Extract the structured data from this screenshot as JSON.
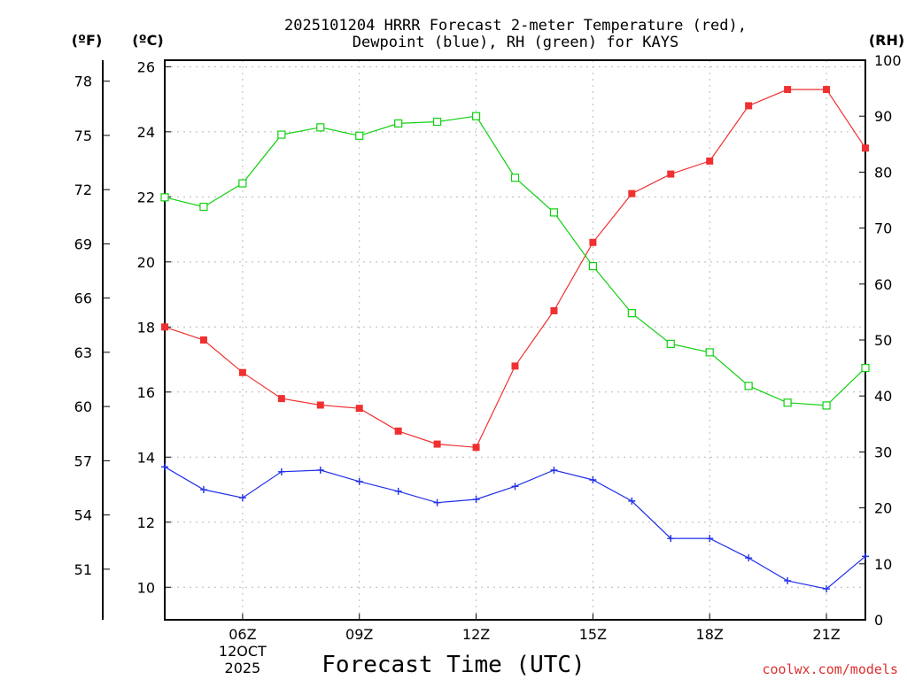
{
  "chart_data": {
    "type": "line",
    "title_lines": [
      "2025101204 HRRR Forecast 2-meter Temperature (red),",
      "Dewpoint (blue), RH (green) for KAYS"
    ],
    "xlabel": "Forecast Time (UTC)",
    "date_label": [
      "12OCT",
      "2025"
    ],
    "credit": "coolwx.com/models",
    "units": {
      "f": "(ºF)",
      "c": "(ºC)",
      "rh": "(RH)"
    },
    "x_hours": [
      4,
      5,
      6,
      7,
      8,
      9,
      10,
      11,
      12,
      13,
      14,
      15,
      16,
      17,
      18,
      19,
      20,
      21,
      22
    ],
    "xlim": [
      4,
      22
    ],
    "x_ticks": [
      {
        "hour": 6,
        "label": "06Z"
      },
      {
        "hour": 9,
        "label": "09Z"
      },
      {
        "hour": 12,
        "label": "12Z"
      },
      {
        "hour": 15,
        "label": "15Z"
      },
      {
        "hour": 18,
        "label": "18Z"
      },
      {
        "hour": 21,
        "label": "21Z"
      }
    ],
    "celsius_axis": {
      "range": [
        9,
        26
      ],
      "ticks": [
        10,
        12,
        14,
        16,
        18,
        20,
        22,
        24,
        26
      ]
    },
    "fahrenheit_ticks": [
      51,
      54,
      57,
      60,
      63,
      66,
      69,
      72,
      75,
      78
    ],
    "rh_axis": {
      "range": [
        0,
        100
      ],
      "ticks": [
        0,
        10,
        20,
        30,
        40,
        50,
        60,
        70,
        80,
        90,
        100
      ]
    },
    "colors": {
      "temperature": "#f03030",
      "dewpoint": "#2030e8",
      "rh": "#10d010",
      "credit": "#e03030"
    },
    "series": [
      {
        "name": "Temperature",
        "axis": "celsius",
        "marker": "filled-square",
        "values": [
          18.0,
          17.6,
          16.6,
          15.8,
          15.6,
          15.5,
          14.8,
          14.4,
          14.3,
          16.8,
          18.5,
          20.6,
          22.1,
          22.7,
          23.1,
          24.8,
          25.3,
          25.3,
          23.5
        ]
      },
      {
        "name": "Dewpoint",
        "axis": "celsius",
        "marker": "plus",
        "values": [
          13.7,
          13.0,
          12.75,
          13.55,
          13.6,
          13.25,
          12.95,
          12.6,
          12.7,
          13.1,
          13.6,
          13.3,
          12.65,
          11.5,
          11.5,
          10.9,
          10.2,
          9.95,
          10.95
        ]
      },
      {
        "name": "RH",
        "axis": "rh",
        "marker": "open-square",
        "values": [
          75.5,
          73.8,
          78.0,
          86.7,
          88.0,
          86.5,
          88.7,
          89.0,
          90.0,
          79.0,
          72.8,
          63.2,
          54.8,
          49.3,
          47.8,
          41.8,
          38.8,
          38.3,
          45.0
        ]
      }
    ]
  }
}
